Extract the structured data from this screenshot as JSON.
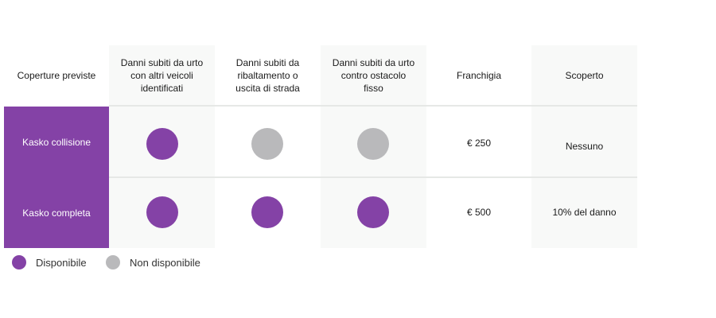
{
  "colors": {
    "available": "#8442a6",
    "unavailable": "#b9b9bb",
    "label_bg": "#8442a6"
  },
  "headers": {
    "coverage": "Coperture previste",
    "col1": [
      "Danni subiti da urto",
      "con altri veicoli",
      "identificati"
    ],
    "col2": [
      "Danni subiti da",
      "ribaltamento o",
      "uscita di strada"
    ],
    "col3": [
      "Danni subiti da urto",
      "contro ostacolo",
      "fisso"
    ],
    "franchise": "Franchigia",
    "uncovered": "Scoperto"
  },
  "rows": [
    {
      "label": "Kasko collisione",
      "franchise": "€ 250",
      "uncovered": "Nessuno",
      "availability": [
        "available",
        "unavailable",
        "unavailable"
      ]
    },
    {
      "label": "Kasko completa",
      "franchise": "€ 500",
      "uncovered": "10% del danno",
      "availability": [
        "available",
        "available",
        "available"
      ]
    }
  ],
  "legend": {
    "available": "Disponibile",
    "unavailable": "Non disponibile"
  }
}
